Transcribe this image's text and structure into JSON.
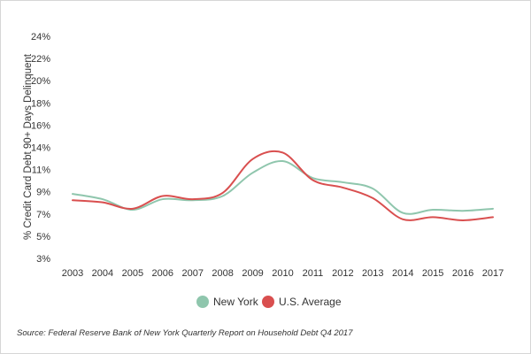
{
  "chart_data": {
    "type": "line",
    "title": "",
    "xlabel": "",
    "ylabel": "% Credit Card Debt 90+ Days Delinquent",
    "ylim": [
      3,
      24
    ],
    "yticks": [
      "3%",
      "5%",
      "7%",
      "9%",
      "11%",
      "14%",
      "16%",
      "18%",
      "20%",
      "22%",
      "24%"
    ],
    "categories": [
      "2003",
      "2004",
      "2005",
      "2006",
      "2007",
      "2008",
      "2009",
      "2010",
      "2011",
      "2012",
      "2013",
      "2014",
      "2015",
      "2016",
      "2017"
    ],
    "series": [
      {
        "name": "New York",
        "color": "#8fc6ad",
        "values": [
          9.1,
          8.6,
          7.6,
          8.6,
          8.5,
          8.9,
          11.1,
          12.2,
          10.6,
          10.2,
          9.6,
          7.3,
          7.6,
          7.5,
          7.7
        ]
      },
      {
        "name": "U.S. Average",
        "color": "#d94f4f",
        "values": [
          8.5,
          8.3,
          7.7,
          8.9,
          8.6,
          9.2,
          12.4,
          13.0,
          10.4,
          9.7,
          8.7,
          6.7,
          6.9,
          6.6,
          6.9
        ]
      }
    ],
    "grid": false,
    "legend_position": "bottom"
  },
  "source": "Source: Federal Reserve Bank of New York Quarterly Report on Household Debt Q4 2017"
}
